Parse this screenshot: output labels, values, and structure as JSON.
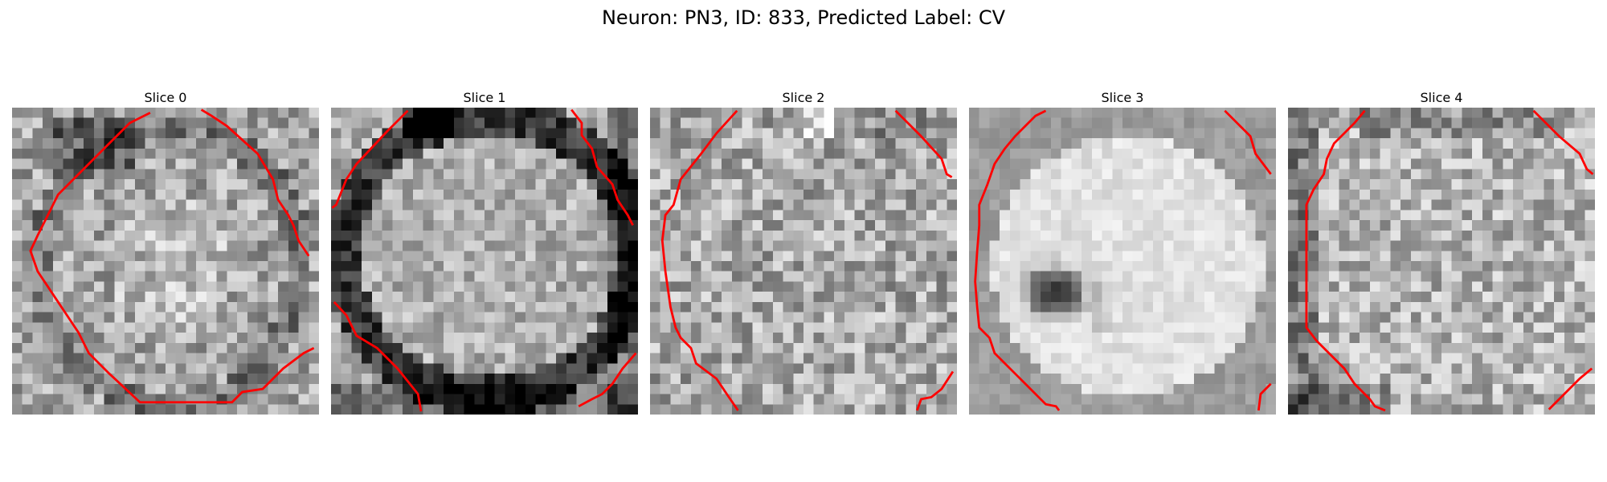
{
  "figure": {
    "suptitle": "Neuron: PN3, ID: 833, Predicted Label: CV",
    "colormap": "grayscale",
    "contour_color": "#ff0000"
  },
  "panels": [
    {
      "title": "Slice 0",
      "dark_feature": "ring-like darker band around a mottled gray soma, dark top-left cluster"
    },
    {
      "title": "Slice 1",
      "dark_feature": "thick dark membrane outline surrounding lighter soma"
    },
    {
      "title": "Slice 2",
      "dark_feature": "mostly uniform mottled gray texture"
    },
    {
      "title": "Slice 3",
      "dark_feature": "bright soma with a dark nucleus-like blob on the left"
    },
    {
      "title": "Slice 4",
      "dark_feature": "mottled gray soma with darker left border"
    }
  ]
}
